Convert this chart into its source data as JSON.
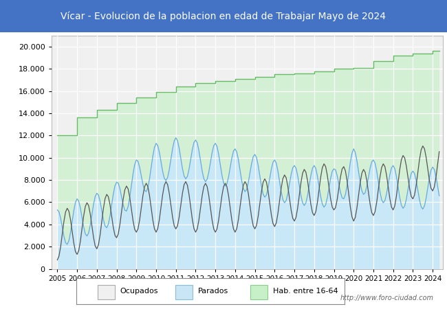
{
  "title": "Vícar - Evolucion de la poblacion en edad de Trabajar Mayo de 2024",
  "title_bg": "#4472c4",
  "title_color": "white",
  "ylabel_ticks": [
    0,
    2000,
    4000,
    6000,
    8000,
    10000,
    12000,
    14000,
    16000,
    18000,
    20000
  ],
  "xlim": [
    2004.7,
    2024.5
  ],
  "ylim": [
    0,
    21000
  ],
  "legend_labels": [
    "Ocupados",
    "Parados",
    "Hab. entre 16-64"
  ],
  "legend_colors": [
    "#f0f0f0",
    "#c8e6f5",
    "#c8f0c8"
  ],
  "legend_edge_colors": [
    "#aaaaaa",
    "#88bbdd",
    "#88cc88"
  ],
  "watermark": "http://www.foro-ciudad.com",
  "plot_bg": "#f0f0f0",
  "grid_color": "#ffffff",
  "hab_color": "#66bb66",
  "hab_fill": "#d4f0d4",
  "parados_color": "#66aadd",
  "parados_fill": "#c8e8f8",
  "ocupados_color": "#555555"
}
